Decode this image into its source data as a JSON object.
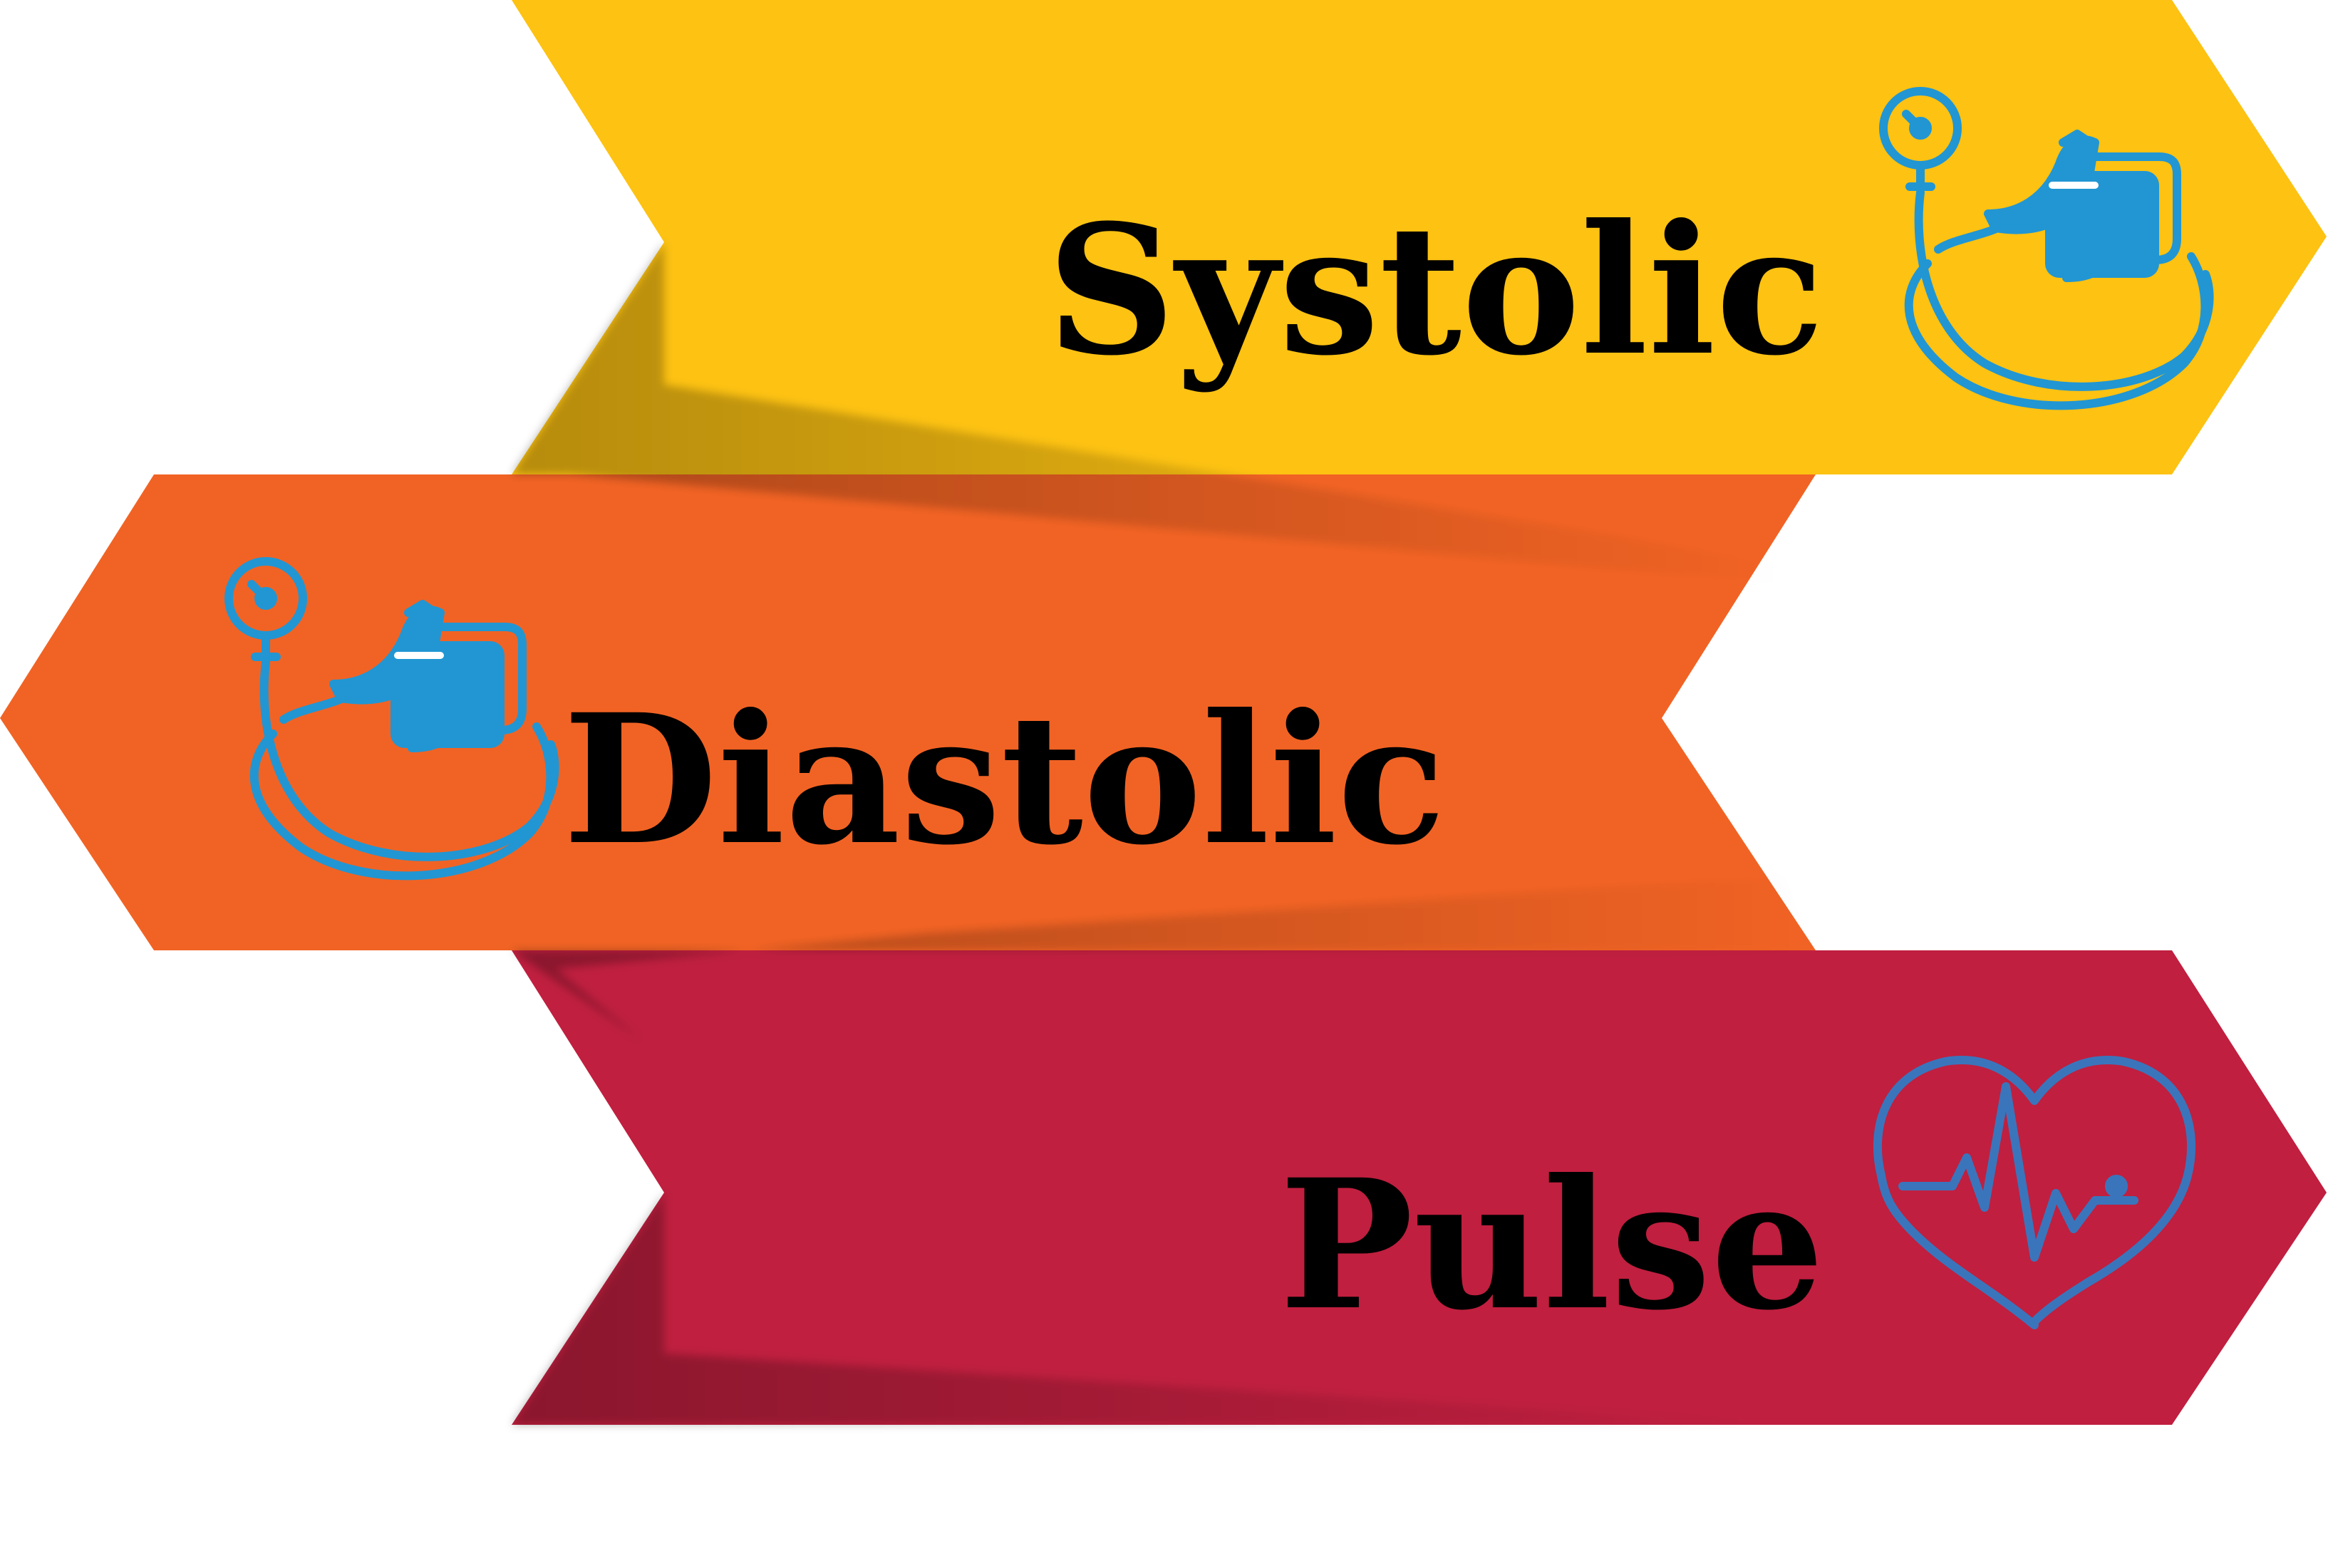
{
  "arrows": [
    {
      "id": "systolic",
      "label": "Systolic",
      "color": "#FDC212",
      "direction": "right",
      "icon": "blood-pressure-monitor-icon",
      "icon_color": "#2196D3"
    },
    {
      "id": "diastolic",
      "label": "Diastolic",
      "color": "#F16324",
      "direction": "left",
      "icon": "blood-pressure-monitor-icon",
      "icon_color": "#2196D3"
    },
    {
      "id": "pulse",
      "label": "Pulse",
      "color": "#C01F3F",
      "direction": "right",
      "icon": "heart-pulse-icon",
      "icon_color": "#3A75BC"
    }
  ],
  "shadow_color": "#000000"
}
